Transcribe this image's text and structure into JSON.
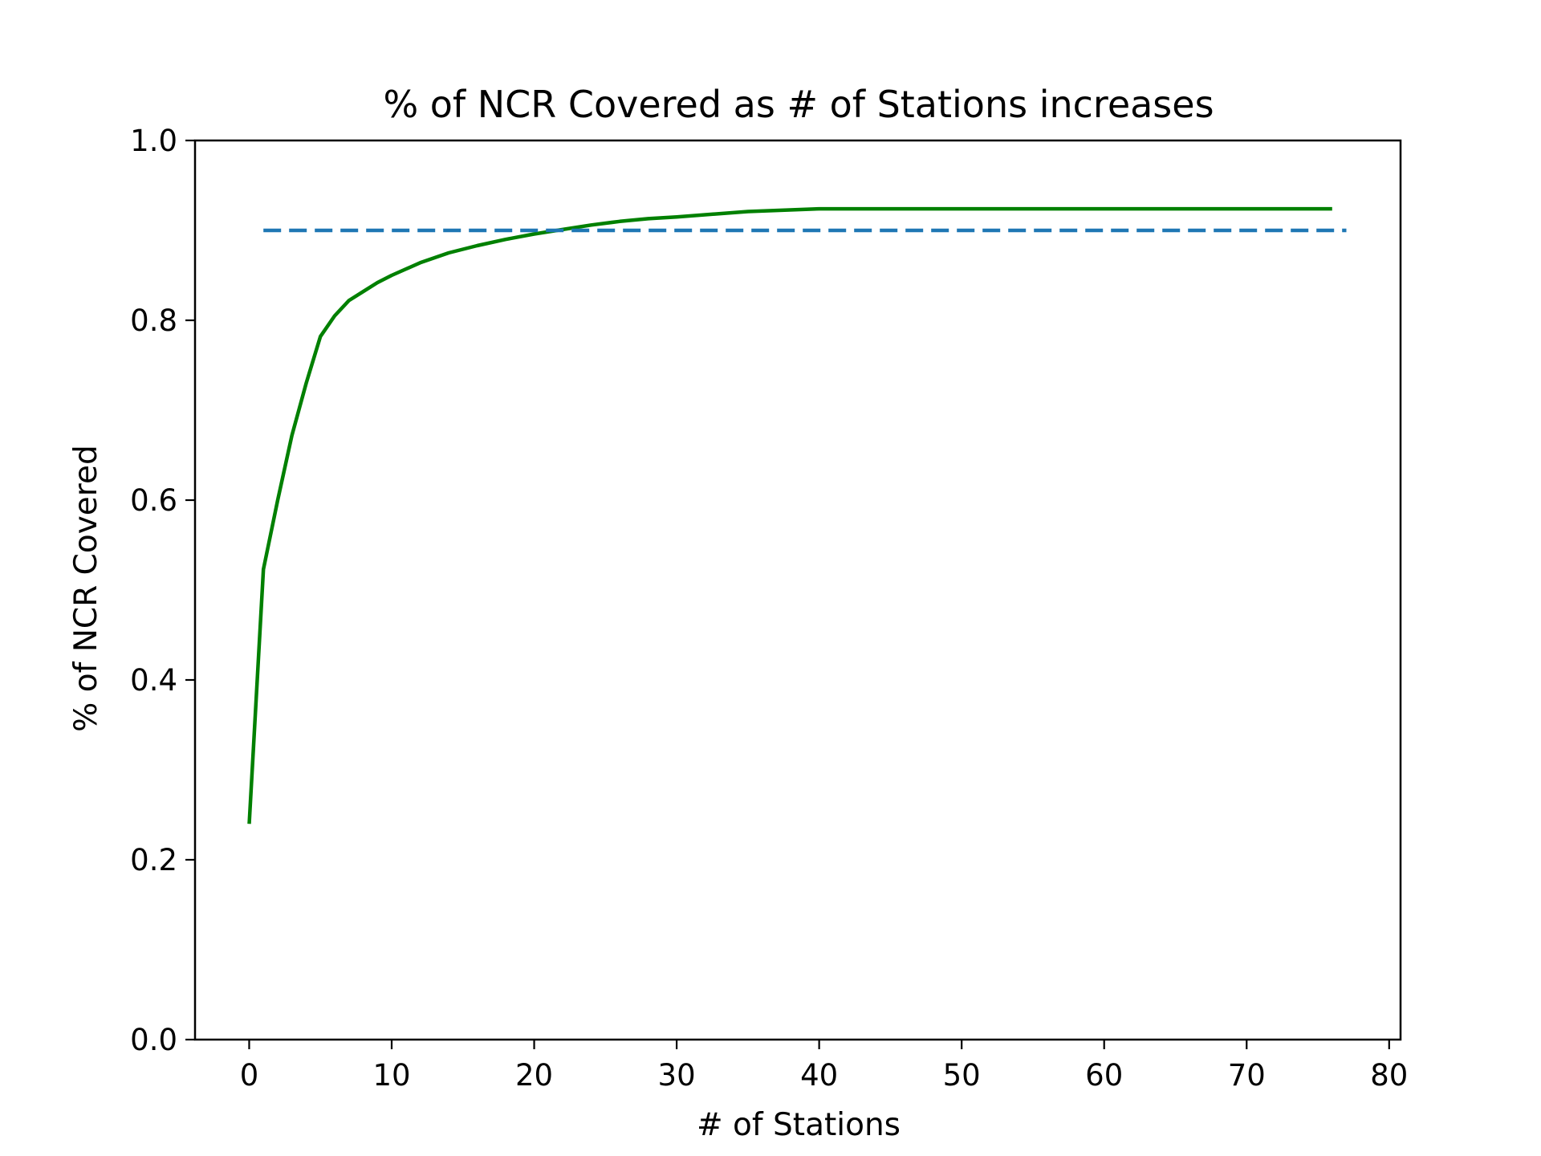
{
  "chart_data": {
    "type": "line",
    "title": "% of NCR Covered as # of Stations increases",
    "xlabel": "# of Stations",
    "ylabel": "% of NCR Covered",
    "xlim": [
      -3.8,
      80.8
    ],
    "ylim": [
      0.0,
      1.0
    ],
    "xticks": [
      0,
      10,
      20,
      30,
      40,
      50,
      60,
      70,
      80
    ],
    "yticks": [
      0.0,
      0.2,
      0.4,
      0.6,
      0.8,
      1.0
    ],
    "xtick_labels": [
      "0",
      "10",
      "20",
      "30",
      "40",
      "50",
      "60",
      "70",
      "80"
    ],
    "ytick_labels": [
      "0.0",
      "0.2",
      "0.4",
      "0.6",
      "0.8",
      "1.0"
    ],
    "grid": false,
    "legend": "none",
    "series": [
      {
        "color": "#008000",
        "style": "solid",
        "x": [
          0,
          1,
          2,
          3,
          4,
          5,
          6,
          7,
          8,
          9,
          10,
          12,
          14,
          16,
          18,
          20,
          22,
          24,
          26,
          28,
          30,
          35,
          40,
          45,
          50,
          60,
          70,
          76
        ],
        "y": [
          0.24,
          0.523,
          0.6,
          0.672,
          0.73,
          0.782,
          0.805,
          0.822,
          0.832,
          0.842,
          0.85,
          0.864,
          0.875,
          0.883,
          0.89,
          0.896,
          0.901,
          0.906,
          0.91,
          0.913,
          0.915,
          0.921,
          0.924,
          0.924,
          0.924,
          0.924,
          0.924,
          0.924
        ]
      },
      {
        "color": "#1f77b4",
        "style": "dashed",
        "x": [
          1,
          77
        ],
        "y": [
          0.9,
          0.9
        ]
      }
    ]
  }
}
